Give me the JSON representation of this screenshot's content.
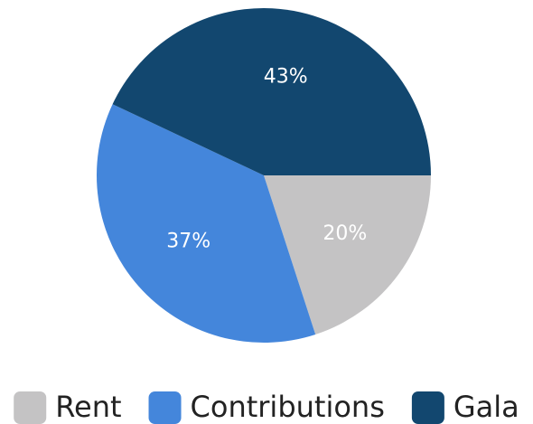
{
  "chart_data": {
    "type": "pie",
    "categories": [
      "Rent",
      "Contributions",
      "Gala"
    ],
    "values": [
      20,
      37,
      43
    ],
    "value_labels": [
      "20%",
      "37%",
      "43%"
    ],
    "colors": [
      "#c4c3c4",
      "#4486db",
      "#12476f"
    ],
    "legend": "bottom"
  }
}
